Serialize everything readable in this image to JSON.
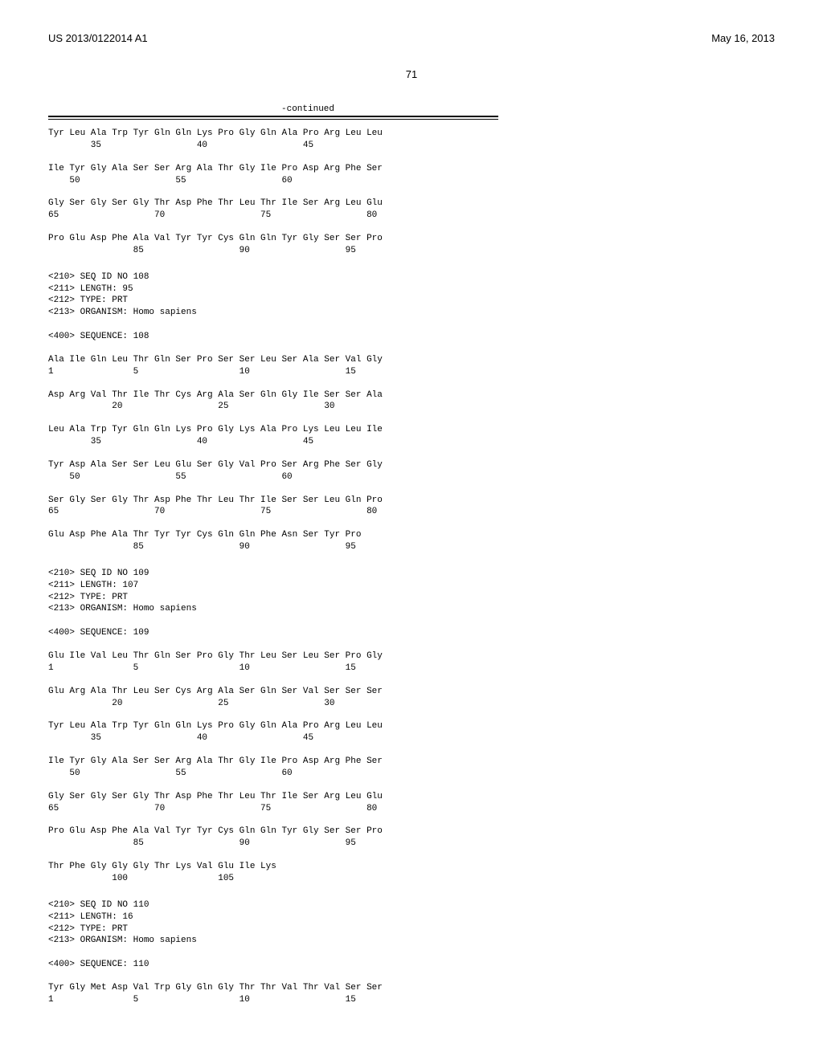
{
  "header": {
    "pub_number": "US 2013/0122014 A1",
    "pub_date": "May 16, 2013"
  },
  "page_number": "71",
  "continued_label": "-continued",
  "sequences": {
    "cont": [
      "Tyr Leu Ala Trp Tyr Gln Gln Lys Pro Gly Gln Ala Pro Arg Leu Leu\n        35                  40                  45",
      "Ile Tyr Gly Ala Ser Ser Arg Ala Thr Gly Ile Pro Asp Arg Phe Ser\n    50                  55                  60",
      "Gly Ser Gly Ser Gly Thr Asp Phe Thr Leu Thr Ile Ser Arg Leu Glu\n65                  70                  75                  80",
      "Pro Glu Asp Phe Ala Val Tyr Tyr Cys Gln Gln Tyr Gly Ser Ser Pro\n                85                  90                  95"
    ],
    "s108_meta": "<210> SEQ ID NO 108\n<211> LENGTH: 95\n<212> TYPE: PRT\n<213> ORGANISM: Homo sapiens\n\n<400> SEQUENCE: 108",
    "s108": [
      "Ala Ile Gln Leu Thr Gln Ser Pro Ser Ser Leu Ser Ala Ser Val Gly\n1               5                   10                  15",
      "Asp Arg Val Thr Ile Thr Cys Arg Ala Ser Gln Gly Ile Ser Ser Ala\n            20                  25                  30",
      "Leu Ala Trp Tyr Gln Gln Lys Pro Gly Lys Ala Pro Lys Leu Leu Ile\n        35                  40                  45",
      "Tyr Asp Ala Ser Ser Leu Glu Ser Gly Val Pro Ser Arg Phe Ser Gly\n    50                  55                  60",
      "Ser Gly Ser Gly Thr Asp Phe Thr Leu Thr Ile Ser Ser Leu Gln Pro\n65                  70                  75                  80",
      "Glu Asp Phe Ala Thr Tyr Tyr Cys Gln Gln Phe Asn Ser Tyr Pro\n                85                  90                  95"
    ],
    "s109_meta": "<210> SEQ ID NO 109\n<211> LENGTH: 107\n<212> TYPE: PRT\n<213> ORGANISM: Homo sapiens\n\n<400> SEQUENCE: 109",
    "s109": [
      "Glu Ile Val Leu Thr Gln Ser Pro Gly Thr Leu Ser Leu Ser Pro Gly\n1               5                   10                  15",
      "Glu Arg Ala Thr Leu Ser Cys Arg Ala Ser Gln Ser Val Ser Ser Ser\n            20                  25                  30",
      "Tyr Leu Ala Trp Tyr Gln Gln Lys Pro Gly Gln Ala Pro Arg Leu Leu\n        35                  40                  45",
      "Ile Tyr Gly Ala Ser Ser Arg Ala Thr Gly Ile Pro Asp Arg Phe Ser\n    50                  55                  60",
      "Gly Ser Gly Ser Gly Thr Asp Phe Thr Leu Thr Ile Ser Arg Leu Glu\n65                  70                  75                  80",
      "Pro Glu Asp Phe Ala Val Tyr Tyr Cys Gln Gln Tyr Gly Ser Ser Pro\n                85                  90                  95",
      "Thr Phe Gly Gly Gly Thr Lys Val Glu Ile Lys\n            100                 105"
    ],
    "s110_meta": "<210> SEQ ID NO 110\n<211> LENGTH: 16\n<212> TYPE: PRT\n<213> ORGANISM: Homo sapiens\n\n<400> SEQUENCE: 110",
    "s110": [
      "Tyr Gly Met Asp Val Trp Gly Gln Gly Thr Thr Val Thr Val Ser Ser\n1               5                   10                  15"
    ]
  }
}
